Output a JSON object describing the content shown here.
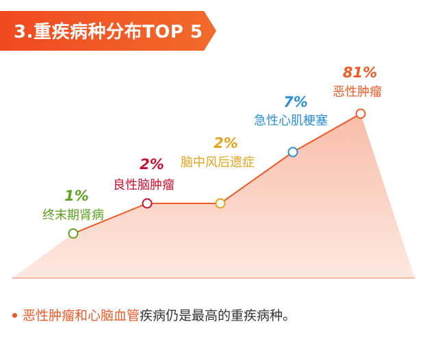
{
  "banner": {
    "title": "3.重疾病种分布TOP 5",
    "color": "#ee5a24"
  },
  "chart_data": {
    "type": "line",
    "title": "3.重疾病种分布TOP 5",
    "series": [
      {
        "points": [
          {
            "label": "终末期肾病",
            "pct": "1%",
            "color": "#5ba21f"
          },
          {
            "label": "良性脑肿瘤",
            "pct": "2%",
            "color": "#c8102e"
          },
          {
            "label": "脑中风后遗症",
            "pct": "2%",
            "color": "#e5a41a"
          },
          {
            "label": "急性心肌梗塞",
            "pct": "7%",
            "color": "#2b8fd6"
          },
          {
            "label": "恶性肿瘤",
            "pct": "81%",
            "color": "#ee5a24"
          }
        ]
      }
    ],
    "line_color": "#ee5a24",
    "area_color": "#fbd5c8"
  },
  "footnote": {
    "highlight": "恶性肿瘤和心脑血管",
    "rest": "疾病仍是最高的重疾病种。"
  }
}
